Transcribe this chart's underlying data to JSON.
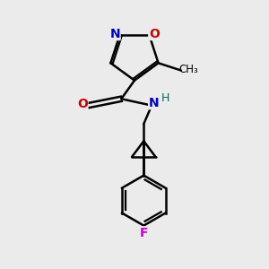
{
  "bg_color": "#ebebeb",
  "atom_colors": {
    "C": "#000000",
    "N": "#0000cc",
    "O": "#cc0000",
    "F": "#cc00cc",
    "H": "#006666"
  },
  "figsize": [
    3.0,
    3.0
  ],
  "dpi": 100
}
